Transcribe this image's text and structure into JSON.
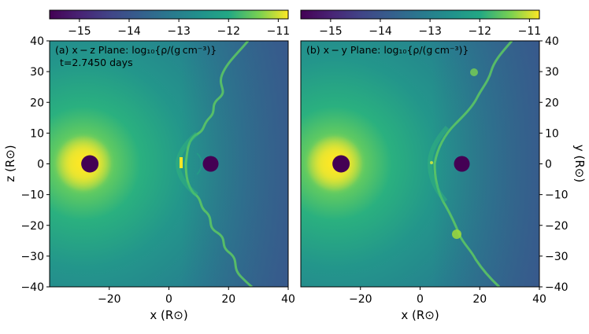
{
  "chart_data": {
    "type": "heatmap",
    "colormap": "viridis",
    "colorbar": {
      "range": [
        -15.6,
        -10.8
      ],
      "ticks": [
        "−15",
        "−14",
        "−13",
        "−12",
        "−11"
      ],
      "tick_values": [
        -15,
        -14,
        -13,
        -12,
        -11
      ]
    },
    "panels": [
      {
        "label": "(a) x − z Plane: log₁₀{ρ/(g cm⁻³)}",
        "time": "t=2.7450 days",
        "xlabel": "x (R⊙)",
        "ylabel": "z (R⊙)",
        "ylabel_side": "left",
        "xlim": [
          -40,
          40
        ],
        "ylim": [
          -40,
          40
        ],
        "xticks": [
          "−20",
          "0",
          "20",
          "40"
        ],
        "xtick_values": [
          -20,
          0,
          20,
          40
        ],
        "yticks": [
          "−40",
          "−30",
          "−20",
          "−10",
          "0",
          "10",
          "20",
          "30",
          "40"
        ],
        "ytick_values": [
          -40,
          -30,
          -20,
          -10,
          0,
          10,
          20,
          30,
          40
        ],
        "star1": {
          "x": -26.5,
          "y": 0
        },
        "star2": {
          "x": 14.0,
          "y": 0
        }
      },
      {
        "label": "(b) x − y Plane: log₁₀{ρ/(g cm⁻³)}",
        "time": "",
        "xlabel": "x (R⊙)",
        "ylabel": "y (R⊙)",
        "ylabel_side": "right",
        "xlim": [
          -40,
          40
        ],
        "ylim": [
          -40,
          40
        ],
        "xticks": [
          "−20",
          "0",
          "20",
          "40"
        ],
        "xtick_values": [
          -20,
          0,
          20,
          40
        ],
        "yticks": [
          "−40",
          "−30",
          "−20",
          "−10",
          "0",
          "10",
          "20",
          "30",
          "40"
        ],
        "ytick_values": [
          -40,
          -30,
          -20,
          -10,
          0,
          10,
          20,
          30,
          40
        ],
        "star1": {
          "x": -26.5,
          "y": 0
        },
        "star2": {
          "x": 14.0,
          "y": 0
        }
      }
    ]
  }
}
